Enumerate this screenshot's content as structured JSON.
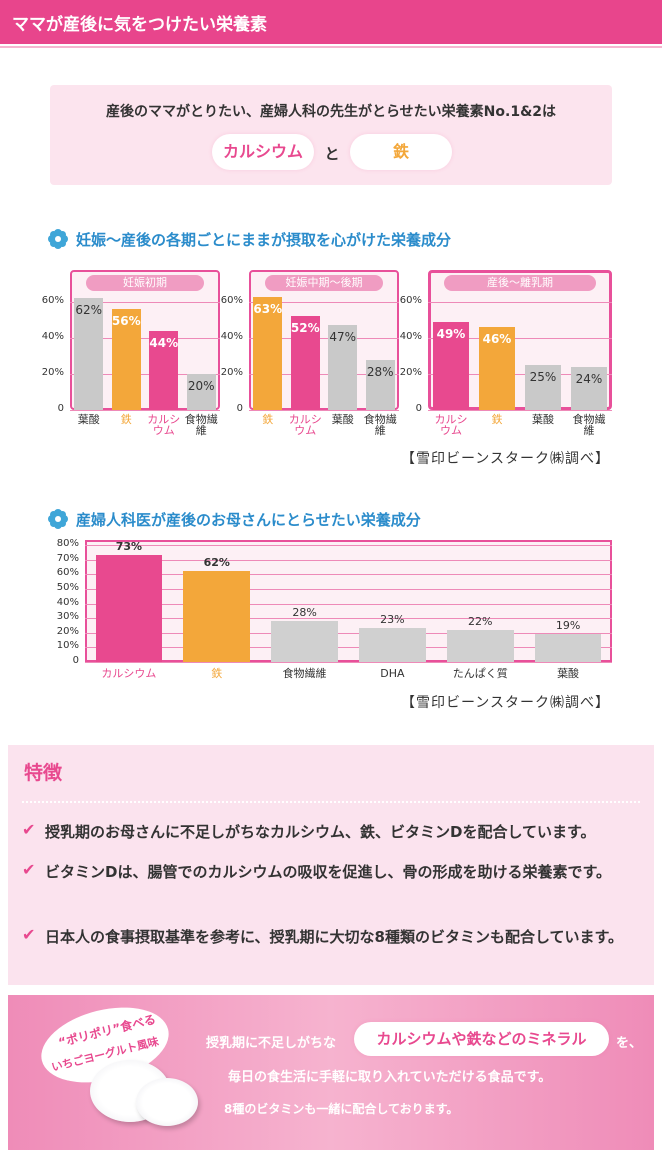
{
  "header": {
    "title": "ママが産後に気をつけたい栄養素"
  },
  "intro": {
    "text": "産後のママがとりたい、産婦人科の先生がとらせたい栄養素No.1&2は",
    "items": [
      "カルシウム",
      "鉄"
    ],
    "connector": "と"
  },
  "section_headings": [
    "妊娠～産後の各期ごとにままが摂取を心がけた栄養成分",
    "産婦人科医が産後のお母さんにとらせたい栄養成分"
  ],
  "sources": [
    "【雪印ビーンスターク㈱調べ】",
    "【雪印ビーンスターク㈱調べ】"
  ],
  "chart_data": [
    {
      "type": "bar",
      "title": "妊娠初期",
      "categories": [
        "葉酸",
        "鉄",
        "カルシウム",
        "食物繊維"
      ],
      "values": [
        62,
        56,
        44,
        20
      ],
      "value_labels": [
        "62%",
        "56%",
        "44%",
        "20%"
      ],
      "colors": [
        "#c9c9c9",
        "#f3a73a",
        "#e8498f",
        "#c9c9c9"
      ],
      "category_colors": [
        "#333333",
        "#f3a73a",
        "#e8498f",
        "#333333"
      ],
      "ylim": [
        0,
        75
      ],
      "yticks": [
        0,
        {
          "value": 20,
          "label": "20%"
        },
        {
          "value": 40,
          "label": "40%"
        },
        {
          "value": 60,
          "label": "60%"
        }
      ],
      "grid": true
    },
    {
      "type": "bar",
      "title": "妊娠中期～後期",
      "categories": [
        "鉄",
        "カルシウム",
        "葉酸",
        "食物繊維"
      ],
      "values": [
        63,
        52,
        47,
        28
      ],
      "value_labels": [
        "63%",
        "52%",
        "47%",
        "28%"
      ],
      "colors": [
        "#f3a73a",
        "#e8498f",
        "#c9c9c9",
        "#c9c9c9"
      ],
      "category_colors": [
        "#f3a73a",
        "#e8498f",
        "#333333",
        "#333333"
      ],
      "ylim": [
        0,
        75
      ],
      "yticks": [
        0,
        {
          "value": 20,
          "label": "20%"
        },
        {
          "value": 40,
          "label": "40%"
        },
        {
          "value": 60,
          "label": "60%"
        }
      ],
      "grid": true
    },
    {
      "type": "bar",
      "title": "産後～離乳期",
      "categories": [
        "カルシウム",
        "鉄",
        "葉酸",
        "食物繊維"
      ],
      "values": [
        49,
        46,
        25,
        24
      ],
      "value_labels": [
        "49%",
        "46%",
        "25%",
        "24%"
      ],
      "colors": [
        "#e8498f",
        "#f3a73a",
        "#c9c9c9",
        "#c9c9c9"
      ],
      "category_colors": [
        "#e8498f",
        "#f3a73a",
        "#333333",
        "#333333"
      ],
      "ylim": [
        0,
        75
      ],
      "yticks": [
        0,
        {
          "value": 20,
          "label": "20%"
        },
        {
          "value": 40,
          "label": "40%"
        },
        {
          "value": 60,
          "label": "60%"
        }
      ],
      "grid": true
    },
    {
      "type": "bar",
      "categories": [
        "カルシウム",
        "鉄",
        "食物繊維",
        "DHA",
        "たんぱく質",
        "葉酸"
      ],
      "values": [
        73,
        62,
        28,
        23,
        22,
        19
      ],
      "value_labels": [
        "73%",
        "62%",
        "28%",
        "23%",
        "22%",
        "19%"
      ],
      "colors": [
        "#e8498f",
        "#f3a73a",
        "#d0d0d0",
        "#d0d0d0",
        "#d0d0d0",
        "#d0d0d0"
      ],
      "category_colors": [
        "#e8498f",
        "#f3a73a",
        "#333333",
        "#333333",
        "#333333",
        "#333333"
      ],
      "ylim": [
        0,
        80
      ],
      "yticks": [
        0,
        {
          "value": 10,
          "label": "10%"
        },
        {
          "value": 20,
          "label": "20%"
        },
        {
          "value": 30,
          "label": "30%"
        },
        {
          "value": 40,
          "label": "40%"
        },
        {
          "value": 50,
          "label": "50%"
        },
        {
          "value": 60,
          "label": "60%"
        },
        {
          "value": 70,
          "label": "70%"
        },
        {
          "value": 80,
          "label": "80%"
        }
      ],
      "grid": true
    }
  ],
  "features": {
    "title": "特徴",
    "items": [
      "授乳期のお母さんに不足しがちなカルシウム、鉄、ビタミンDを配合しています。",
      "ビタミンDは、腸管でのカルシウムの吸収を促進し、骨の形成を助ける栄養素です。",
      "日本人の食事摂取基準を参考に、授乳期に大切な8種類のビタミンも配合しています。"
    ]
  },
  "banner": {
    "badge": [
      "“ポリポリ”食べる",
      "いちごヨーグルト風味"
    ],
    "lead": "授乳期に不足しがちな",
    "highlight": "カルシウムや鉄などのミネラル",
    "tail": "を、",
    "lines": [
      "毎日の食生活に手軽に取り入れていただける食品です。",
      "8種のビタミンも一緒に配合しております。"
    ]
  }
}
